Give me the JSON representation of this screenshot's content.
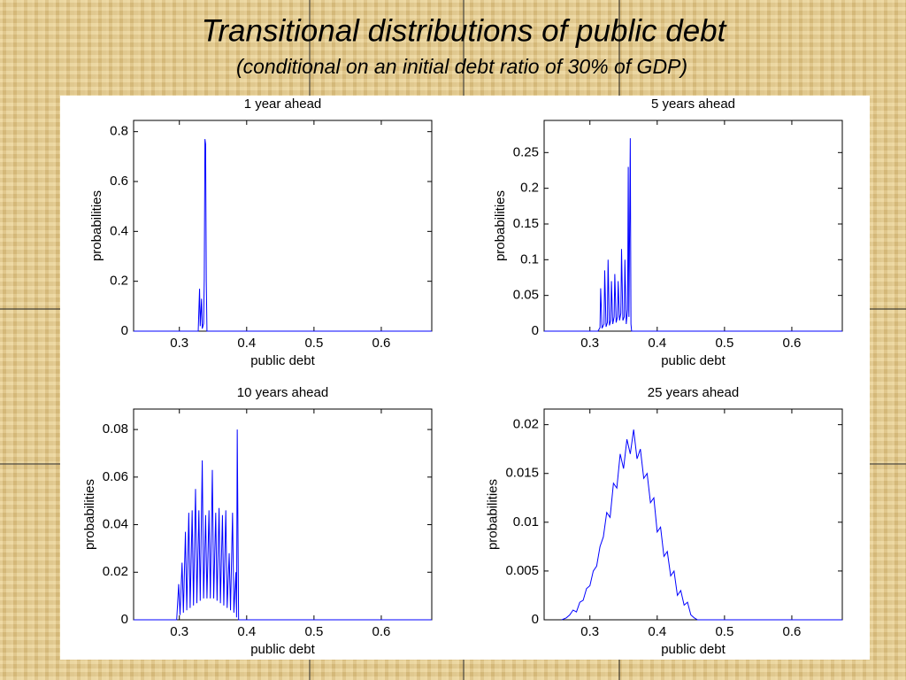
{
  "title": "Transitional distributions of public debt",
  "subtitle": "(conditional on an initial debt ratio of 30% of GDP)",
  "chart_data": [
    {
      "type": "line",
      "title": "1 year ahead",
      "xlabel": "public debt",
      "ylabel": "probabilities",
      "color": "#0000ff",
      "grid": false,
      "xlim": [
        0.232,
        0.675
      ],
      "ylim": [
        0,
        0.845
      ],
      "xticks": [
        0.3,
        0.4,
        0.5,
        0.6
      ],
      "yticks": [
        0,
        0.2,
        0.4,
        0.6,
        0.8
      ],
      "x": [
        0.232,
        0.328,
        0.33,
        0.331,
        0.333,
        0.334,
        0.336,
        0.337,
        0.338,
        0.339,
        0.34,
        0.341,
        0.343,
        0.675
      ],
      "values": [
        0,
        0,
        0.17,
        0.02,
        0.13,
        0.01,
        0.03,
        0.21,
        0.77,
        0.75,
        0.2,
        0,
        0,
        0
      ]
    },
    {
      "type": "line",
      "title": "5 years ahead",
      "xlabel": "public debt",
      "ylabel": "probabilities",
      "color": "#0000ff",
      "grid": false,
      "xlim": [
        0.232,
        0.675
      ],
      "ylim": [
        0,
        0.295
      ],
      "xticks": [
        0.3,
        0.4,
        0.5,
        0.6
      ],
      "yticks": [
        0,
        0.05,
        0.1,
        0.15,
        0.2,
        0.25
      ],
      "x": [
        0.232,
        0.312,
        0.315,
        0.316,
        0.318,
        0.321,
        0.322,
        0.324,
        0.326,
        0.327,
        0.329,
        0.331,
        0.332,
        0.334,
        0.336,
        0.337,
        0.339,
        0.341,
        0.342,
        0.344,
        0.346,
        0.347,
        0.349,
        0.351,
        0.352,
        0.354,
        0.356,
        0.357,
        0.358,
        0.36,
        0.361,
        0.362,
        0.675
      ],
      "values": [
        0,
        0,
        0.005,
        0.06,
        0.004,
        0.01,
        0.085,
        0.006,
        0.012,
        0.1,
        0.008,
        0.015,
        0.07,
        0.01,
        0.02,
        0.08,
        0.012,
        0.02,
        0.07,
        0.015,
        0.025,
        0.115,
        0.015,
        0.02,
        0.1,
        0.01,
        0.03,
        0.23,
        0.02,
        0.27,
        0.01,
        0,
        0
      ]
    },
    {
      "type": "line",
      "title": "10 years ahead",
      "xlabel": "public debt",
      "ylabel": "probabilities",
      "color": "#0000ff",
      "grid": false,
      "xlim": [
        0.232,
        0.675
      ],
      "ylim": [
        0,
        0.0886
      ],
      "xticks": [
        0.3,
        0.4,
        0.5,
        0.6
      ],
      "yticks": [
        0,
        0.02,
        0.04,
        0.06,
        0.08
      ],
      "x": [
        0.232,
        0.296,
        0.299,
        0.301,
        0.304,
        0.306,
        0.309,
        0.311,
        0.314,
        0.316,
        0.319,
        0.321,
        0.324,
        0.326,
        0.329,
        0.331,
        0.334,
        0.336,
        0.339,
        0.341,
        0.344,
        0.346,
        0.349,
        0.351,
        0.354,
        0.356,
        0.359,
        0.361,
        0.364,
        0.366,
        0.369,
        0.371,
        0.374,
        0.376,
        0.379,
        0.381,
        0.384,
        0.385,
        0.386,
        0.388,
        0.675
      ],
      "values": [
        0,
        0,
        0.015,
        0.002,
        0.024,
        0.003,
        0.037,
        0.004,
        0.045,
        0.005,
        0.046,
        0.006,
        0.055,
        0.007,
        0.046,
        0.008,
        0.067,
        0.009,
        0.044,
        0.009,
        0.046,
        0.009,
        0.063,
        0.009,
        0.045,
        0.008,
        0.047,
        0.007,
        0.044,
        0.006,
        0.046,
        0.005,
        0.028,
        0.004,
        0.045,
        0.003,
        0.02,
        0.001,
        0.08,
        0,
        0
      ]
    },
    {
      "type": "line",
      "title": "25 years ahead",
      "xlabel": "public debt",
      "ylabel": "probabilities",
      "color": "#0000ff",
      "grid": false,
      "xlim": [
        0.232,
        0.675
      ],
      "ylim": [
        0,
        0.0216
      ],
      "xticks": [
        0.3,
        0.4,
        0.5,
        0.6
      ],
      "yticks": [
        0,
        0.005,
        0.01,
        0.015,
        0.02
      ],
      "x": [
        0.258,
        0.265,
        0.27,
        0.275,
        0.28,
        0.285,
        0.29,
        0.295,
        0.3,
        0.305,
        0.31,
        0.315,
        0.32,
        0.325,
        0.33,
        0.335,
        0.34,
        0.345,
        0.35,
        0.355,
        0.36,
        0.365,
        0.37,
        0.375,
        0.38,
        0.385,
        0.39,
        0.395,
        0.4,
        0.405,
        0.41,
        0.415,
        0.42,
        0.425,
        0.43,
        0.435,
        0.44,
        0.445,
        0.45,
        0.455,
        0.46,
        0.675
      ],
      "values": [
        0,
        0.0002,
        0.0005,
        0.001,
        0.0008,
        0.0018,
        0.002,
        0.0032,
        0.0035,
        0.005,
        0.0055,
        0.0075,
        0.0085,
        0.011,
        0.0105,
        0.014,
        0.0135,
        0.017,
        0.0155,
        0.0185,
        0.017,
        0.0195,
        0.0165,
        0.0175,
        0.0145,
        0.015,
        0.012,
        0.0125,
        0.009,
        0.0095,
        0.0065,
        0.007,
        0.0045,
        0.005,
        0.0025,
        0.003,
        0.0015,
        0.0018,
        0.0005,
        0.0002,
        0,
        0
      ]
    }
  ]
}
